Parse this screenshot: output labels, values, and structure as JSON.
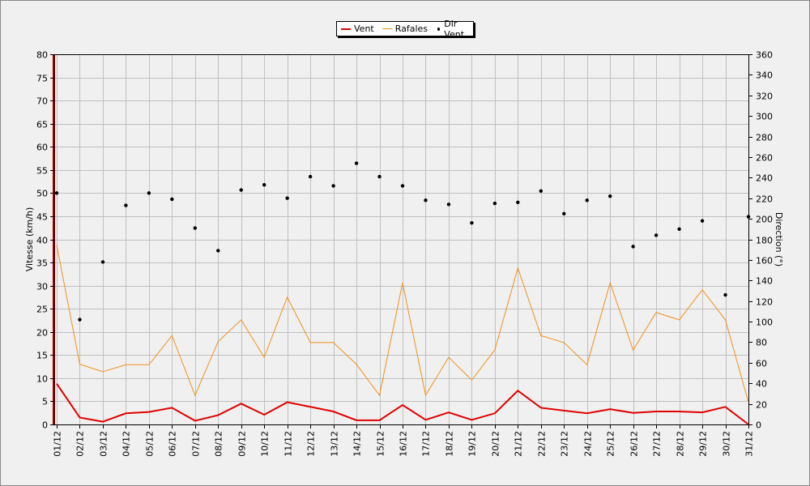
{
  "chart_data": {
    "type": "line",
    "categories": [
      "01/12",
      "02/12",
      "03/12",
      "04/12",
      "05/12",
      "06/12",
      "07/12",
      "08/12",
      "09/12",
      "10/12",
      "11/12",
      "12/12",
      "13/12",
      "14/12",
      "15/12",
      "16/12",
      "17/12",
      "18/12",
      "19/12",
      "20/12",
      "21/12",
      "22/12",
      "23/12",
      "24/12",
      "25/12",
      "26/12",
      "27/12",
      "28/12",
      "29/12",
      "30/12",
      "31/12"
    ],
    "ylabel": "Vitesse (km/h)",
    "ylabel_right": "Direction (°)",
    "ylim": [
      0,
      80
    ],
    "ylim_right": [
      0,
      360
    ],
    "yticks": [
      0,
      5,
      10,
      15,
      20,
      25,
      30,
      35,
      40,
      45,
      50,
      55,
      60,
      65,
      70,
      75,
      80
    ],
    "yticks_right": [
      0,
      20,
      40,
      60,
      80,
      100,
      120,
      140,
      160,
      180,
      200,
      220,
      240,
      260,
      280,
      300,
      320,
      340,
      360
    ],
    "grid": true,
    "legend_position": "top-center",
    "series": [
      {
        "name": "Vent",
        "type": "line",
        "axis": "left",
        "color": "#e00000",
        "values": [
          8.8,
          1.5,
          0.6,
          2.4,
          2.7,
          3.6,
          0.8,
          2.0,
          4.5,
          2.1,
          4.8,
          3.8,
          2.8,
          0.9,
          0.9,
          4.2,
          1.0,
          2.6,
          1.0,
          2.4,
          7.3,
          3.6,
          3.0,
          2.4,
          3.3,
          2.5,
          2.8,
          2.8,
          2.6,
          3.8,
          0.0
        ]
      },
      {
        "name": "Rafales",
        "type": "line",
        "axis": "left",
        "color": "#f0901c",
        "values": [
          38.8,
          13.0,
          11.4,
          12.9,
          12.9,
          19.2,
          6.3,
          17.9,
          22.6,
          14.5,
          27.5,
          17.7,
          17.7,
          13.0,
          6.3,
          30.6,
          6.3,
          14.5,
          9.6,
          16.1,
          33.8,
          19.2,
          17.7,
          12.9,
          30.6,
          16.1,
          24.2,
          22.6,
          29.1,
          22.6,
          4.8
        ]
      },
      {
        "name": "Dir Vent",
        "type": "scatter",
        "axis": "right",
        "color": "#000000",
        "values": [
          225,
          102,
          158,
          213,
          225,
          219,
          191,
          169,
          228,
          233,
          220,
          241,
          232,
          254,
          241,
          232,
          218,
          214,
          196,
          215,
          216,
          227,
          205,
          218,
          222,
          173,
          184,
          190,
          198,
          126,
          202
        ]
      }
    ]
  }
}
